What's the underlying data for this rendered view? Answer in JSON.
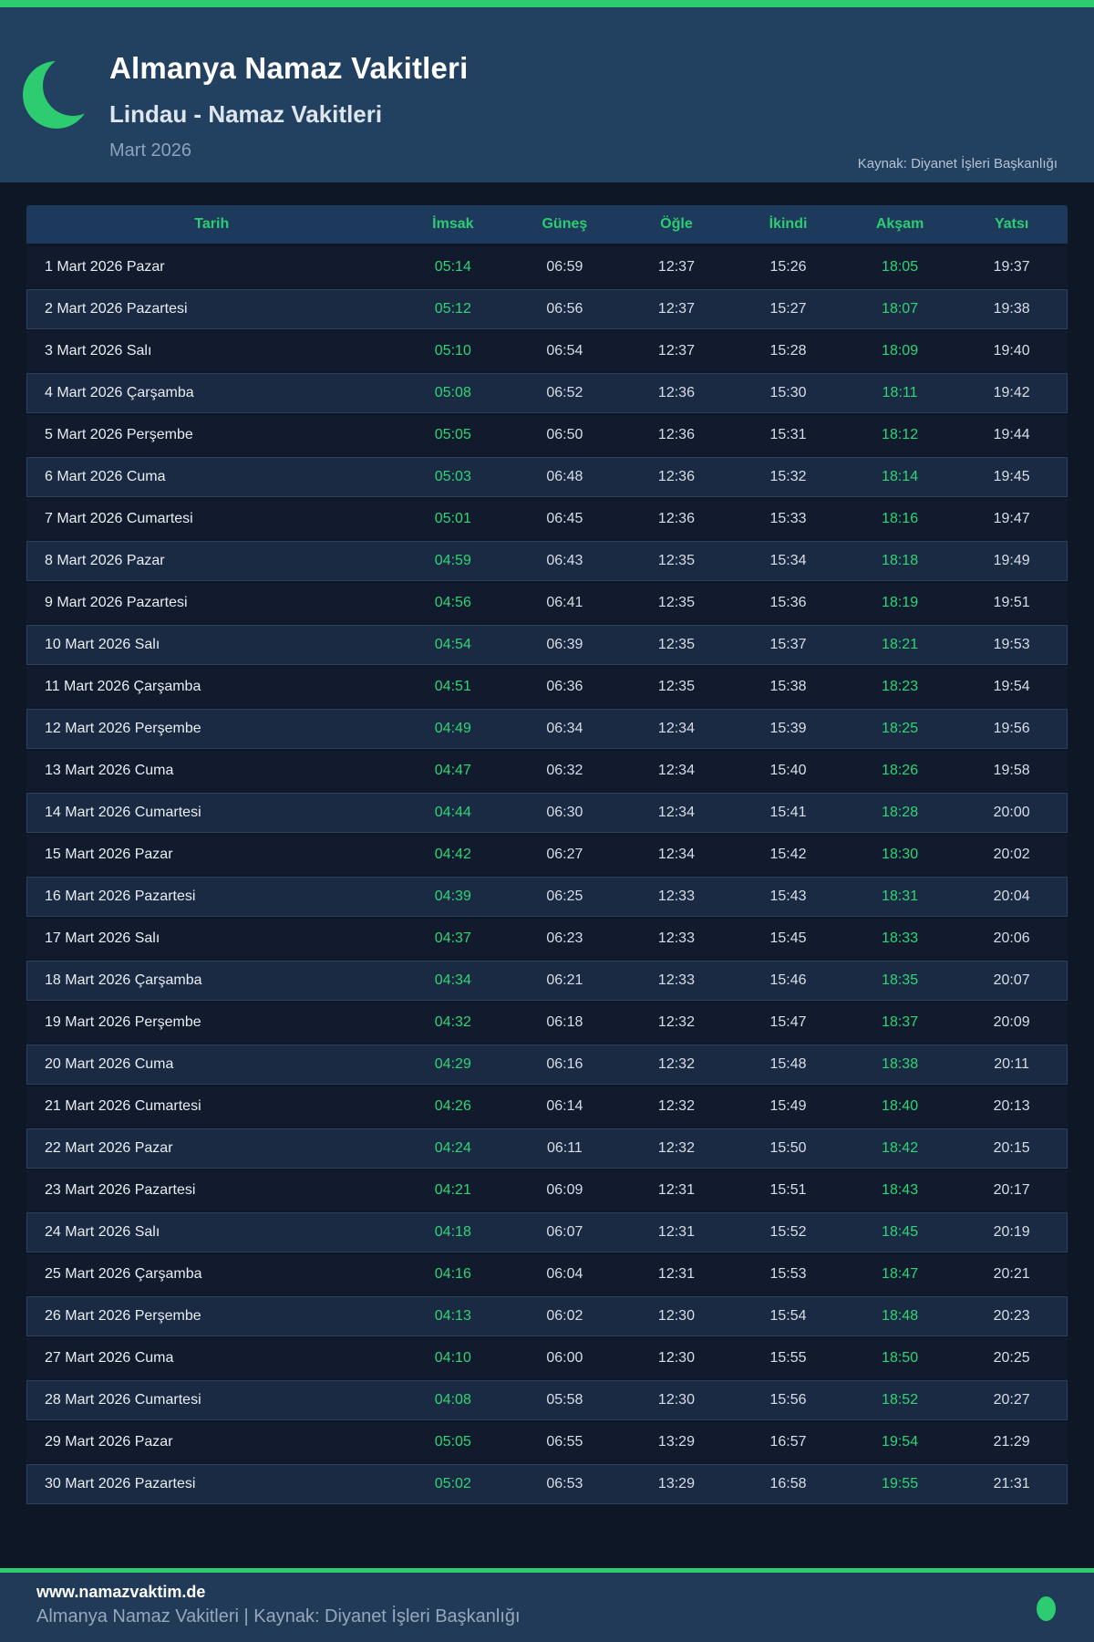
{
  "header": {
    "title": "Almanya Namaz Vakitleri",
    "subtitle": "Lindau - Namaz Vakitleri",
    "month": "Mart 2026",
    "source": "Kaynak: Diyanet İşleri Başkanlığı"
  },
  "table": {
    "columns": [
      "Tarih",
      "İmsak",
      "Güneş",
      "Öğle",
      "İkindi",
      "Akşam",
      "Yatsı"
    ],
    "rows": [
      {
        "date": "1 Mart 2026 Pazar",
        "times": [
          "05:14",
          "06:59",
          "12:37",
          "15:26",
          "18:05",
          "19:37"
        ]
      },
      {
        "date": "2 Mart 2026 Pazartesi",
        "times": [
          "05:12",
          "06:56",
          "12:37",
          "15:27",
          "18:07",
          "19:38"
        ]
      },
      {
        "date": "3 Mart 2026 Salı",
        "times": [
          "05:10",
          "06:54",
          "12:37",
          "15:28",
          "18:09",
          "19:40"
        ]
      },
      {
        "date": "4 Mart 2026 Çarşamba",
        "times": [
          "05:08",
          "06:52",
          "12:36",
          "15:30",
          "18:11",
          "19:42"
        ]
      },
      {
        "date": "5 Mart 2026 Perşembe",
        "times": [
          "05:05",
          "06:50",
          "12:36",
          "15:31",
          "18:12",
          "19:44"
        ]
      },
      {
        "date": "6 Mart 2026 Cuma",
        "times": [
          "05:03",
          "06:48",
          "12:36",
          "15:32",
          "18:14",
          "19:45"
        ]
      },
      {
        "date": "7 Mart 2026 Cumartesi",
        "times": [
          "05:01",
          "06:45",
          "12:36",
          "15:33",
          "18:16",
          "19:47"
        ]
      },
      {
        "date": "8 Mart 2026 Pazar",
        "times": [
          "04:59",
          "06:43",
          "12:35",
          "15:34",
          "18:18",
          "19:49"
        ]
      },
      {
        "date": "9 Mart 2026 Pazartesi",
        "times": [
          "04:56",
          "06:41",
          "12:35",
          "15:36",
          "18:19",
          "19:51"
        ]
      },
      {
        "date": "10 Mart 2026 Salı",
        "times": [
          "04:54",
          "06:39",
          "12:35",
          "15:37",
          "18:21",
          "19:53"
        ]
      },
      {
        "date": "11 Mart 2026 Çarşamba",
        "times": [
          "04:51",
          "06:36",
          "12:35",
          "15:38",
          "18:23",
          "19:54"
        ]
      },
      {
        "date": "12 Mart 2026 Perşembe",
        "times": [
          "04:49",
          "06:34",
          "12:34",
          "15:39",
          "18:25",
          "19:56"
        ]
      },
      {
        "date": "13 Mart 2026 Cuma",
        "times": [
          "04:47",
          "06:32",
          "12:34",
          "15:40",
          "18:26",
          "19:58"
        ]
      },
      {
        "date": "14 Mart 2026 Cumartesi",
        "times": [
          "04:44",
          "06:30",
          "12:34",
          "15:41",
          "18:28",
          "20:00"
        ]
      },
      {
        "date": "15 Mart 2026 Pazar",
        "times": [
          "04:42",
          "06:27",
          "12:34",
          "15:42",
          "18:30",
          "20:02"
        ]
      },
      {
        "date": "16 Mart 2026 Pazartesi",
        "times": [
          "04:39",
          "06:25",
          "12:33",
          "15:43",
          "18:31",
          "20:04"
        ]
      },
      {
        "date": "17 Mart 2026 Salı",
        "times": [
          "04:37",
          "06:23",
          "12:33",
          "15:45",
          "18:33",
          "20:06"
        ]
      },
      {
        "date": "18 Mart 2026 Çarşamba",
        "times": [
          "04:34",
          "06:21",
          "12:33",
          "15:46",
          "18:35",
          "20:07"
        ]
      },
      {
        "date": "19 Mart 2026 Perşembe",
        "times": [
          "04:32",
          "06:18",
          "12:32",
          "15:47",
          "18:37",
          "20:09"
        ]
      },
      {
        "date": "20 Mart 2026 Cuma",
        "times": [
          "04:29",
          "06:16",
          "12:32",
          "15:48",
          "18:38",
          "20:11"
        ]
      },
      {
        "date": "21 Mart 2026 Cumartesi",
        "times": [
          "04:26",
          "06:14",
          "12:32",
          "15:49",
          "18:40",
          "20:13"
        ]
      },
      {
        "date": "22 Mart 2026 Pazar",
        "times": [
          "04:24",
          "06:11",
          "12:32",
          "15:50",
          "18:42",
          "20:15"
        ]
      },
      {
        "date": "23 Mart 2026 Pazartesi",
        "times": [
          "04:21",
          "06:09",
          "12:31",
          "15:51",
          "18:43",
          "20:17"
        ]
      },
      {
        "date": "24 Mart 2026 Salı",
        "times": [
          "04:18",
          "06:07",
          "12:31",
          "15:52",
          "18:45",
          "20:19"
        ]
      },
      {
        "date": "25 Mart 2026 Çarşamba",
        "times": [
          "04:16",
          "06:04",
          "12:31",
          "15:53",
          "18:47",
          "20:21"
        ]
      },
      {
        "date": "26 Mart 2026 Perşembe",
        "times": [
          "04:13",
          "06:02",
          "12:30",
          "15:54",
          "18:48",
          "20:23"
        ]
      },
      {
        "date": "27 Mart 2026 Cuma",
        "times": [
          "04:10",
          "06:00",
          "12:30",
          "15:55",
          "18:50",
          "20:25"
        ]
      },
      {
        "date": "28 Mart 2026 Cumartesi",
        "times": [
          "04:08",
          "05:58",
          "12:30",
          "15:56",
          "18:52",
          "20:27"
        ]
      },
      {
        "date": "29 Mart 2026 Pazar",
        "times": [
          "05:05",
          "06:55",
          "13:29",
          "16:57",
          "19:54",
          "21:29"
        ]
      },
      {
        "date": "30 Mart 2026 Pazartesi",
        "times": [
          "05:02",
          "06:53",
          "13:29",
          "16:58",
          "19:55",
          "21:31"
        ]
      }
    ]
  },
  "footer": {
    "site": "www.namazvaktim.de",
    "caption": "Almanya Namaz Vakitleri | Kaynak: Diyanet İşleri Başkanlığı"
  },
  "colors": {
    "accent_green": "#2ecc71",
    "time_green": "#2ed573",
    "page_bg": "#0e1726",
    "header_bg": "#22405f",
    "table_header_bg": "#1d3a5c",
    "row_dark": "#111b2d",
    "row_light": "#1b2a43"
  }
}
